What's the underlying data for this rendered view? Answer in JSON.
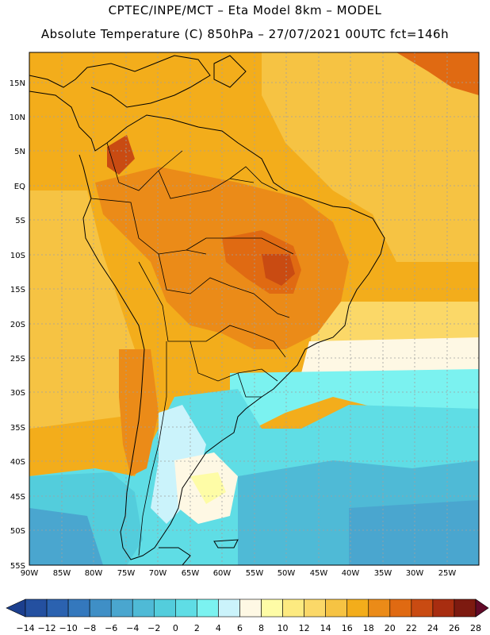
{
  "header": {
    "line1": "CPTEC/INPE/MCT –  Eta Model 8km – MODEL",
    "line2": "Absolute Temperature (C) 850hPa – 27/07/2021 00UTC fct=146h"
  },
  "map": {
    "lat_labels": [
      "15N",
      "10N",
      "5N",
      "EQ",
      "5S",
      "10S",
      "15S",
      "20S",
      "25S",
      "30S",
      "35S",
      "40S",
      "45S",
      "50S",
      "55S"
    ],
    "lon_labels": [
      "90W",
      "85W",
      "80W",
      "75W",
      "70W",
      "65W",
      "60W",
      "55W",
      "50W",
      "45W",
      "40W",
      "35W",
      "30W",
      "25W"
    ]
  },
  "colorbar": {
    "labels": [
      "-14",
      "-12",
      "-10",
      "-8",
      "-6",
      "-4",
      "-2",
      "0",
      "2",
      "4",
      "6",
      "8",
      "10",
      "12",
      "14",
      "16",
      "18",
      "20",
      "22",
      "24",
      "26",
      "28"
    ],
    "colors": [
      "#1c3f8e",
      "#2450a0",
      "#2b62b0",
      "#3478bd",
      "#3f8fc6",
      "#4aa6cf",
      "#4fbad6",
      "#53cddc",
      "#5fdde5",
      "#7bf2f0",
      "#cbf3fb",
      "#fef8e4",
      "#fefca6",
      "#fdea80",
      "#fbd868",
      "#f6c343",
      "#f3ad1b",
      "#eb8b18",
      "#e06a12",
      "#c94b12",
      "#a82d10",
      "#7d1a10",
      "#620a28"
    ]
  },
  "legend_colors": {
    "border": "#000000",
    "grid": "#a0a0a0"
  }
}
